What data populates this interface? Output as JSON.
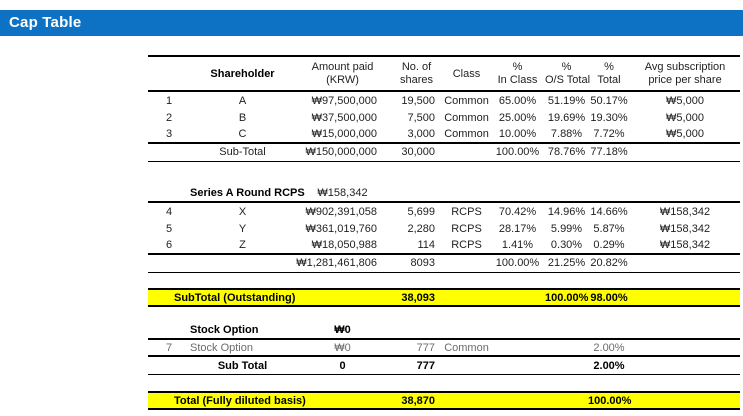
{
  "header_bar": {
    "title": "Cap Table"
  },
  "colors": {
    "accent_blue": "#0E72C4",
    "highlight_yellow": "#FFFF00",
    "muted_row_text": "#6B6B6B"
  },
  "table": {
    "headers": {
      "shareholder": "Shareholder",
      "amount_l1": "Amount paid",
      "amount_l2": "(KRW)",
      "shares_l1": "No. of",
      "shares_l2": "shares",
      "share_class": "Class",
      "in_class_l1": "%",
      "in_class_l2": "In Class",
      "os_total_l1": "%",
      "os_total_l2": "O/S Total",
      "total_l1": "%",
      "total_l2": "Total",
      "avg_l1": "Avg subscription",
      "avg_l2": "price per share"
    },
    "common": {
      "rows": [
        {
          "num": "1",
          "name": "A",
          "amount": "₩97,500,000",
          "shares": "19,500",
          "share_class": "Common",
          "in_class": "65.00%",
          "os_total": "51.19%",
          "total": "50.17%",
          "avg_price": "₩5,000"
        },
        {
          "num": "2",
          "name": "B",
          "amount": "₩37,500,000",
          "shares": "7,500",
          "share_class": "Common",
          "in_class": "25.00%",
          "os_total": "19.69%",
          "total": "19.30%",
          "avg_price": "₩5,000"
        },
        {
          "num": "3",
          "name": "C",
          "amount": "₩15,000,000",
          "shares": "3,000",
          "share_class": "Common",
          "in_class": "10.00%",
          "os_total": "7.88%",
          "total": "7.72%",
          "avg_price": "₩5,000"
        }
      ],
      "subtotal": {
        "name": "Sub-Total",
        "amount": "₩150,000,000",
        "shares": "30,000",
        "in_class": "100.00%",
        "os_total": "78.76%",
        "total": "77.18%"
      }
    },
    "series_a": {
      "header": {
        "name": "Series A Round RCPS",
        "amount": "₩158,342"
      },
      "rows": [
        {
          "num": "4",
          "name": "X",
          "amount": "₩902,391,058",
          "shares": "5,699",
          "share_class": "RCPS",
          "in_class": "70.42%",
          "os_total": "14.96%",
          "total": "14.66%",
          "avg_price": "₩158,342"
        },
        {
          "num": "5",
          "name": "Y",
          "amount": "₩361,019,760",
          "shares": "2,280",
          "share_class": "RCPS",
          "in_class": "28.17%",
          "os_total": "5.99%",
          "total": "5.87%",
          "avg_price": "₩158,342"
        },
        {
          "num": "6",
          "name": "Z",
          "amount": "₩18,050,988",
          "shares": "114",
          "share_class": "RCPS",
          "in_class": "1.41%",
          "os_total": "0.30%",
          "total": "0.29%",
          "avg_price": "₩158,342"
        }
      ],
      "subtotal": {
        "amount": "₩1,281,461,806",
        "shares": "8093",
        "in_class": "100.00%",
        "os_total": "21.25%",
        "total": "20.82%"
      }
    },
    "outstanding": {
      "label": "SubTotal (Outstanding)",
      "shares": "38,093",
      "os_total": "100.00%",
      "total": "98.00%"
    },
    "stock_option": {
      "header": {
        "name": "Stock Option",
        "amount": "₩0"
      },
      "row": {
        "num": "7",
        "name": "Stock Option",
        "amount": "₩0",
        "shares": "777",
        "share_class": "Common",
        "total": "2.00%"
      },
      "subtotal": {
        "name": "Sub Total",
        "amount": "0",
        "shares": "777",
        "total": "2.00%"
      }
    },
    "total": {
      "label": "Total (Fully diluted basis)",
      "shares": "38,870",
      "total": "100.00%"
    }
  }
}
